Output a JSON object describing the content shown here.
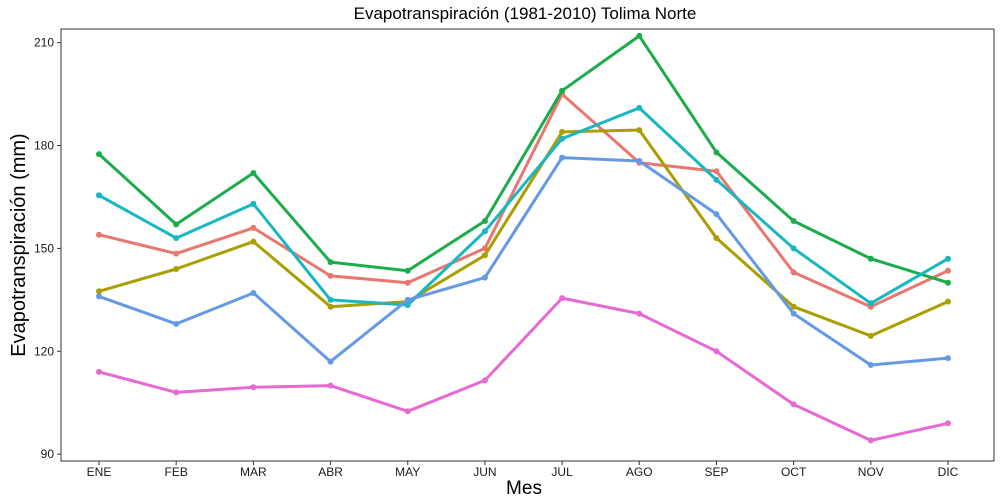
{
  "chart_data": {
    "type": "line",
    "title": "Evapotranspiración (1981-2010)  Tolima Norte",
    "xlabel": "Mes",
    "ylabel": "Evapotranspiración (mm)",
    "categories": [
      "ENE",
      "FEB",
      "MAR",
      "ABR",
      "MAY",
      "JUN",
      "JUL",
      "AGO",
      "SEP",
      "OCT",
      "NOV",
      "DIC"
    ],
    "yticks": [
      90,
      120,
      150,
      180,
      210
    ],
    "ylim": [
      88,
      214
    ],
    "grid": false,
    "legend": "none",
    "series": [
      {
        "color": "#E7776F",
        "values": [
          154,
          148.5,
          156,
          142,
          140,
          150,
          195,
          175,
          172.5,
          143,
          133,
          143.5
        ]
      },
      {
        "color": "#AA9E00",
        "values": [
          137.5,
          144,
          152,
          133,
          134.5,
          148,
          184,
          184.5,
          153,
          133,
          124.5,
          134.5
        ]
      },
      {
        "color": "#1DAC4B",
        "values": [
          177.5,
          157,
          172,
          146,
          143.5,
          158,
          196,
          212,
          178,
          158,
          147,
          140
        ]
      },
      {
        "color": "#18B7C2",
        "values": [
          165.5,
          153,
          163,
          135,
          133.5,
          155,
          182,
          191,
          170,
          150,
          134,
          147
        ]
      },
      {
        "color": "#6499E6",
        "values": [
          136,
          128,
          137,
          117,
          135,
          141.5,
          176.5,
          175.5,
          160,
          131,
          116,
          118
        ]
      },
      {
        "color": "#E769D3",
        "values": [
          114,
          108,
          109.5,
          110,
          102.5,
          111.5,
          135.5,
          131,
          120,
          104.5,
          94,
          99
        ]
      }
    ]
  }
}
